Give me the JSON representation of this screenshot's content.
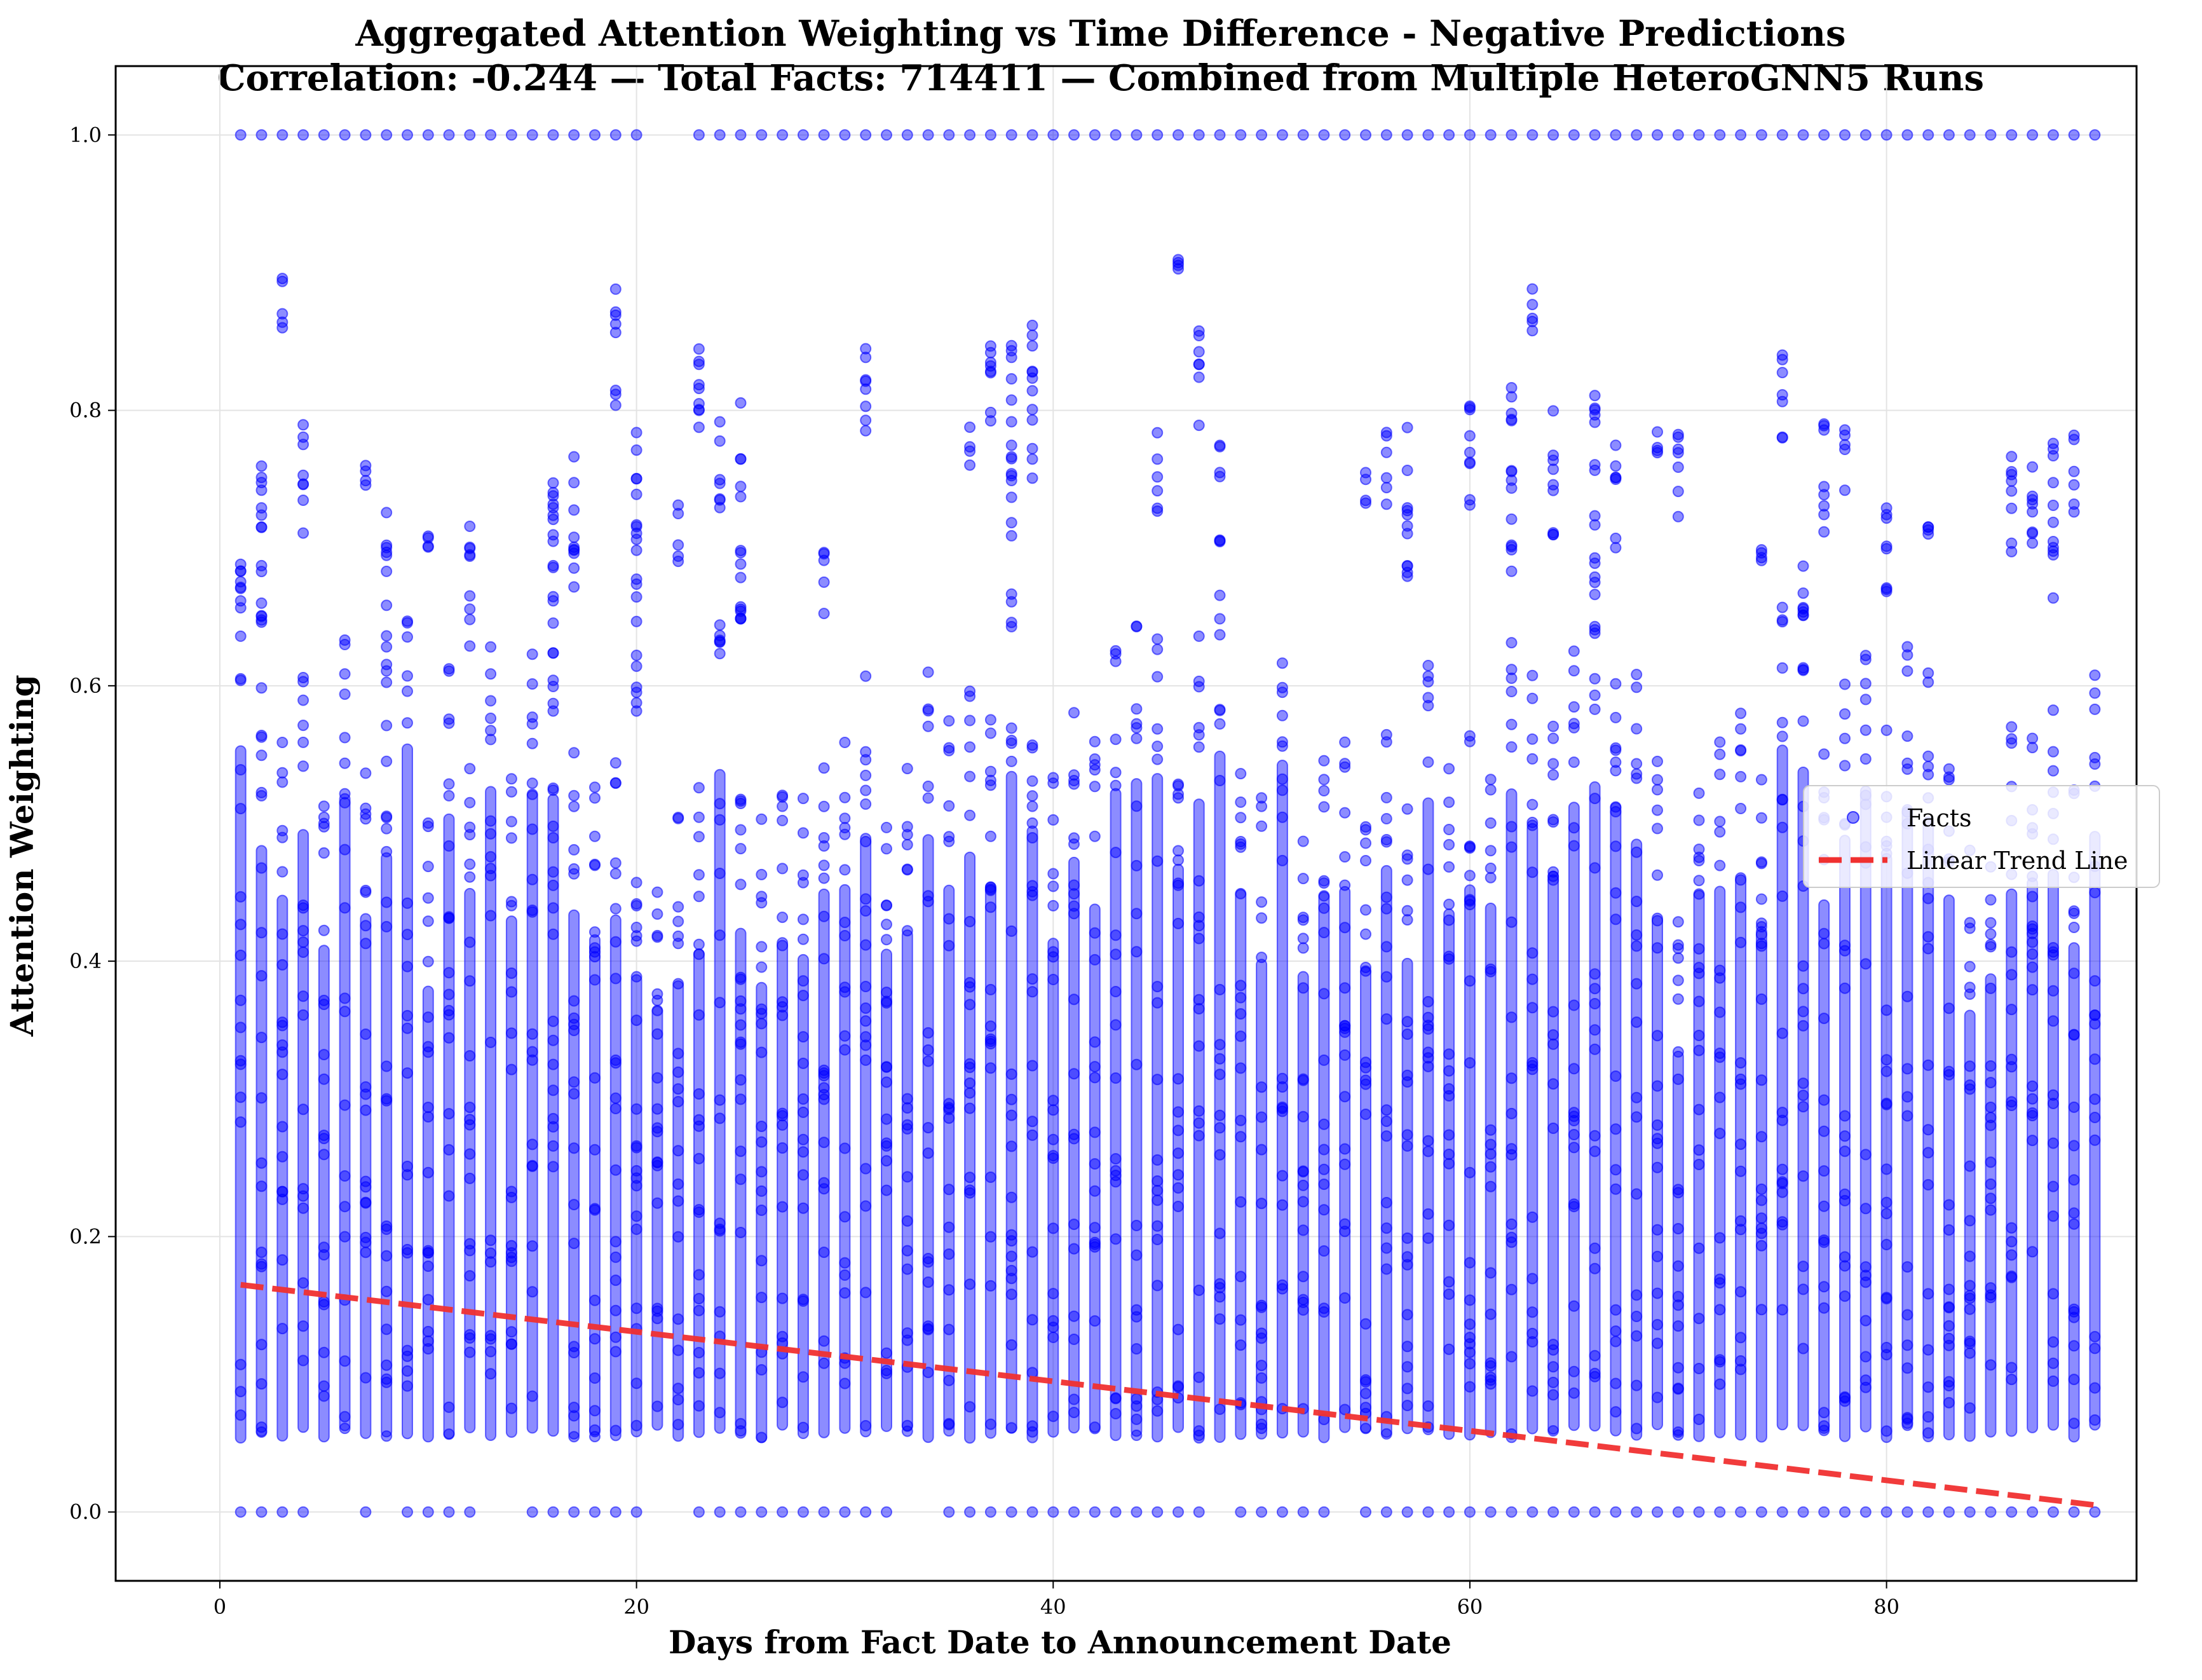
{
  "chart_data": {
    "type": "scatter",
    "title": "Aggregated Attention Weighting vs Time Difference - Negative Predictions",
    "subtitle": "Correlation: -0.244 — Total Facts: 714411 — Combined from Multiple HeteroGNN5 Runs",
    "xlabel": "Days from Fact Date to Announcement Date",
    "ylabel": "Attention Weighting",
    "xlim": [
      -5,
      92
    ],
    "ylim": [
      -0.05,
      1.05
    ],
    "x_ticks": [
      0,
      20,
      40,
      60,
      80
    ],
    "y_ticks": [
      0.0,
      0.2,
      0.4,
      0.6,
      0.8,
      1.0
    ],
    "x_tick_labels": [
      "0",
      "20",
      "40",
      "60",
      "80"
    ],
    "y_tick_labels": [
      "0.0",
      "0.2",
      "0.4",
      "0.6",
      "0.8",
      "1.0"
    ],
    "grid": true,
    "legend": {
      "position": "right",
      "entries": [
        "Facts",
        "Linear Trend Line"
      ]
    },
    "series": [
      {
        "name": "Facts",
        "kind": "scatter",
        "color": "#0000ff",
        "x_range": [
          1,
          90
        ],
        "dense_band": [
          0.05,
          0.56
        ],
        "top_value_days": [
          1,
          2,
          3,
          4,
          5,
          6,
          7,
          8,
          9,
          10,
          11,
          12,
          13,
          14,
          15,
          16,
          17,
          18,
          19,
          20,
          23,
          24,
          25,
          26,
          27,
          28,
          29,
          30,
          31,
          32,
          33,
          34,
          35,
          36,
          37,
          38,
          39,
          40,
          41,
          42,
          43,
          44,
          45,
          46,
          47,
          48,
          49,
          50,
          51,
          52,
          53,
          54,
          55,
          56,
          57,
          58,
          59,
          60,
          61,
          62,
          63,
          64,
          65,
          66,
          67,
          68,
          69,
          70,
          71,
          72,
          73,
          74,
          75,
          76,
          77,
          78,
          79,
          80,
          81,
          82,
          83,
          84,
          85,
          86,
          87,
          88,
          89,
          90
        ],
        "zero_value_days": [
          1,
          2,
          3,
          4,
          7,
          9,
          10,
          11,
          12,
          15,
          16,
          17,
          18,
          19,
          20,
          23,
          24,
          25,
          26,
          27,
          28,
          29,
          30,
          31,
          32,
          35,
          36,
          37,
          38,
          39,
          40,
          41,
          42,
          43,
          44,
          45,
          46,
          47,
          49,
          50,
          51,
          52,
          53,
          55,
          56,
          57,
          58,
          59,
          60,
          61,
          62,
          63,
          64,
          65,
          66,
          67,
          68,
          69,
          70,
          71,
          72,
          73,
          74,
          75,
          76,
          77,
          78,
          79,
          80,
          81,
          82,
          83,
          84,
          85,
          86,
          87,
          88,
          89,
          90
        ],
        "upper_clusters": [
          [
            1,
            0.65,
            0.71
          ],
          [
            2,
            0.62,
            0.79
          ],
          [
            3,
            0.85,
            0.9
          ],
          [
            4,
            0.7,
            0.79
          ],
          [
            7,
            0.74,
            0.76
          ],
          [
            8,
            0.6,
            0.73
          ],
          [
            10,
            0.7,
            0.71
          ],
          [
            12,
            0.62,
            0.72
          ],
          [
            16,
            0.6,
            0.78
          ],
          [
            17,
            0.66,
            0.77
          ],
          [
            19,
            0.8,
            0.89
          ],
          [
            20,
            0.58,
            0.8
          ],
          [
            22,
            0.69,
            0.74
          ],
          [
            23,
            0.76,
            0.86
          ],
          [
            24,
            0.72,
            0.8
          ],
          [
            25,
            0.64,
            0.81
          ],
          [
            29,
            0.64,
            0.7
          ],
          [
            31,
            0.77,
            0.86
          ],
          [
            36,
            0.76,
            0.79
          ],
          [
            37,
            0.78,
            0.87
          ],
          [
            38,
            0.66,
            0.85
          ],
          [
            39,
            0.74,
            0.87
          ],
          [
            45,
            0.72,
            0.79
          ],
          [
            46,
            0.9,
            0.91
          ],
          [
            47,
            0.78,
            0.86
          ],
          [
            48,
            0.7,
            0.78
          ],
          [
            55,
            0.73,
            0.76
          ],
          [
            56,
            0.72,
            0.79
          ],
          [
            57,
            0.67,
            0.79
          ],
          [
            60,
            0.73,
            0.83
          ],
          [
            62,
            0.66,
            0.82
          ],
          [
            63,
            0.84,
            0.89
          ],
          [
            64,
            0.7,
            0.8
          ],
          [
            66,
            0.66,
            0.82
          ],
          [
            67,
            0.7,
            0.78
          ],
          [
            69,
            0.76,
            0.79
          ],
          [
            70,
            0.71,
            0.79
          ],
          [
            74,
            0.69,
            0.7
          ],
          [
            75,
            0.78,
            0.86
          ],
          [
            76,
            0.64,
            0.7
          ],
          [
            77,
            0.71,
            0.8
          ],
          [
            78,
            0.74,
            0.8
          ],
          [
            80,
            0.65,
            0.74
          ],
          [
            82,
            0.71,
            0.72
          ],
          [
            86,
            0.68,
            0.77
          ],
          [
            87,
            0.69,
            0.78
          ],
          [
            88,
            0.66,
            0.78
          ],
          [
            89,
            0.72,
            0.79
          ]
        ]
      },
      {
        "name": "Linear Trend Line",
        "kind": "line",
        "style": "dashed",
        "color": "#f03030",
        "x": [
          1,
          90
        ],
        "y": [
          0.165,
          0.005
        ]
      }
    ]
  }
}
